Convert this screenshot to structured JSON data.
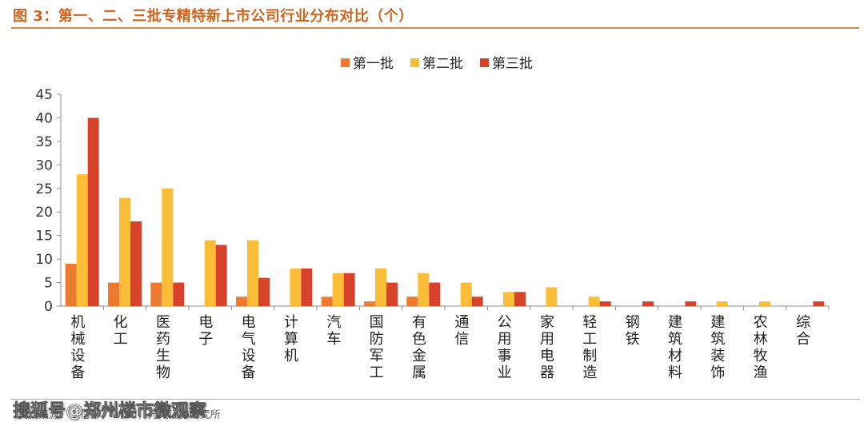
{
  "header": {
    "title": "图 3：第一、二、三批专精特新上市公司行业分布对比（个）"
  },
  "footer": {
    "source": "资料来源：工信部，Wind，光大证券研究所",
    "watermark": "搜狐号@郑州楼市微观察"
  },
  "colors": {
    "accent": "#d0641e",
    "rule": "#e08a4e",
    "series": [
      "#ec7a30",
      "#fbbc38",
      "#d8422a"
    ]
  },
  "chart_data": {
    "type": "bar",
    "title": "",
    "xlabel": "",
    "ylabel": "",
    "ylim": [
      0,
      45
    ],
    "yticks": [
      0,
      5,
      10,
      15,
      20,
      25,
      30,
      35,
      40,
      45
    ],
    "grid": false,
    "legend_position": "top-center",
    "categories": [
      "机械设备",
      "化工",
      "医药生物",
      "电子",
      "电气设备",
      "计算机",
      "汽车",
      "国防军工",
      "有色金属",
      "通信",
      "公用事业",
      "家用电器",
      "轻工制造",
      "钢铁",
      "建筑材料",
      "建筑装饰",
      "农林牧渔",
      "综合"
    ],
    "series": [
      {
        "name": "第一批",
        "color": "#ec7a30",
        "values": [
          9,
          5,
          5,
          0,
          2,
          0,
          2,
          1,
          2,
          0,
          0,
          0,
          0,
          0,
          0,
          0,
          0,
          0
        ]
      },
      {
        "name": "第二批",
        "color": "#fbbc38",
        "values": [
          28,
          23,
          25,
          14,
          14,
          8,
          7,
          8,
          7,
          5,
          3,
          4,
          2,
          0,
          0,
          1,
          1,
          0
        ]
      },
      {
        "name": "第三批",
        "color": "#d8422a",
        "values": [
          40,
          18,
          5,
          13,
          6,
          8,
          7,
          5,
          5,
          2,
          3,
          0,
          1,
          1,
          1,
          0,
          0,
          1
        ]
      }
    ]
  }
}
